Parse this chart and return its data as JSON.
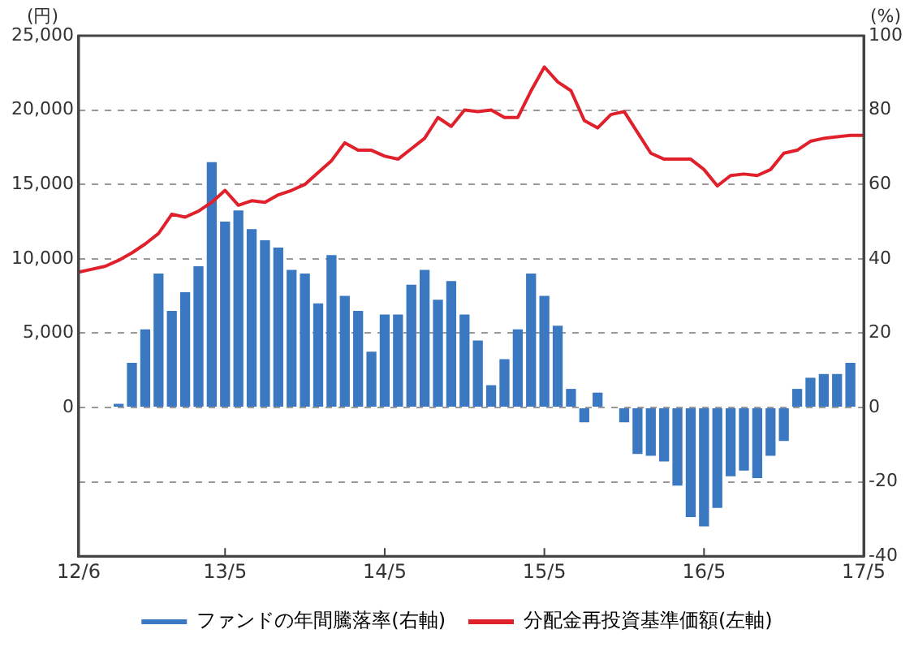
{
  "chart_data": {
    "type": "bar",
    "ylabel": "(円)",
    "y2label": "(%)",
    "categories": [
      "12/6",
      null,
      null,
      null,
      null,
      null,
      null,
      null,
      null,
      null,
      null,
      "13/5",
      null,
      null,
      null,
      null,
      null,
      null,
      null,
      null,
      null,
      null,
      null,
      "14/5",
      null,
      null,
      null,
      null,
      null,
      null,
      null,
      null,
      null,
      null,
      null,
      "15/5",
      null,
      null,
      null,
      null,
      null,
      null,
      null,
      null,
      null,
      null,
      null,
      "16/5",
      null,
      null,
      null,
      null,
      null,
      null,
      null,
      null,
      null,
      null,
      null,
      "17/5"
    ],
    "series": [
      {
        "name": "ファンドの年間騰落率(右軸)",
        "axis": "y2",
        "color": "#3b78c2",
        "values": [
          null,
          null,
          null,
          1,
          12,
          21,
          36,
          26,
          31,
          38,
          66,
          50,
          53,
          48,
          45,
          43,
          37,
          36,
          28,
          41,
          30,
          26,
          15,
          25,
          25,
          33,
          37,
          29,
          34,
          25,
          18,
          6,
          13,
          21,
          36,
          30,
          22,
          5,
          -4,
          4,
          null,
          -4,
          -12.5,
          -13,
          -14.5,
          -21,
          -29.5,
          -32,
          -27,
          -18.5,
          -17,
          -19,
          -13,
          -9,
          5,
          8,
          9,
          9,
          12,
          null
        ]
      },
      {
        "name": "分配金再投資基準価額(左軸)",
        "type": "line",
        "axis": "y",
        "color": "#e0202a",
        "values": [
          9100,
          9300,
          9500,
          9900,
          10400,
          11000,
          11700,
          13000,
          12800,
          13200,
          13800,
          14600,
          13600,
          13900,
          13800,
          14300,
          14600,
          15000,
          15800,
          16600,
          17800,
          17300,
          17300,
          16900,
          16700,
          17400,
          18100,
          19500,
          18900,
          20000,
          19900,
          20000,
          19500,
          19500,
          21300,
          22900,
          21900,
          21300,
          19300,
          18800,
          19700,
          19900,
          18500,
          17100,
          16700,
          16700,
          16700,
          16000,
          14900,
          15600,
          15700,
          15600,
          16000,
          17100,
          17300,
          17900,
          18100,
          18200,
          18300,
          18300
        ]
      }
    ],
    "ylim": [
      -10000,
      25000
    ],
    "yticks": [
      0,
      {
        "value": 5000,
        "label": "5,000"
      },
      {
        "value": 10000,
        "label": "10,000"
      },
      {
        "value": 15000,
        "label": "15,000"
      },
      {
        "value": 20000,
        "label": "20,000"
      },
      {
        "value": 25000,
        "label": "25,000"
      }
    ],
    "y2lim": [
      -40,
      100
    ],
    "y2ticks": [
      -40,
      -20,
      0,
      20,
      40,
      60,
      80,
      100
    ],
    "grid": "y",
    "legend": "bottom",
    "marker": "none"
  }
}
